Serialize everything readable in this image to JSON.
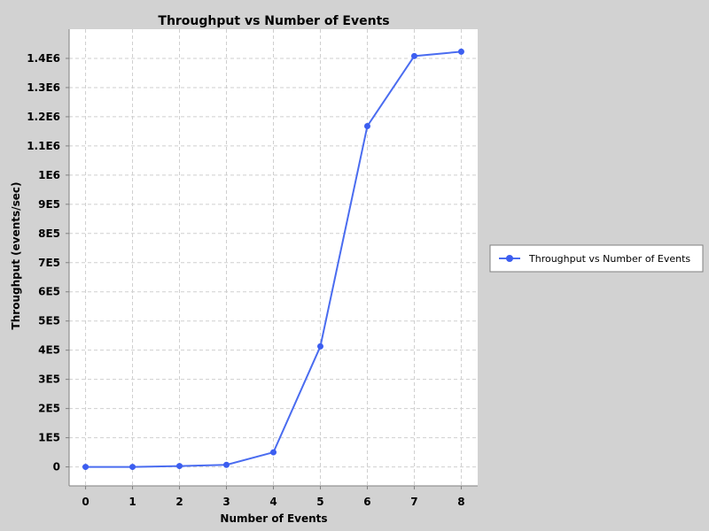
{
  "chart_data": {
    "type": "line",
    "title": "Throughput vs Number of Events",
    "xlabel": "Number of Events",
    "ylabel": "Throughput (events/sec)",
    "x": [
      0,
      1,
      2,
      3,
      4,
      5,
      6,
      7,
      8
    ],
    "x_tick_labels": [
      "0",
      "1",
      "2",
      "3",
      "4",
      "5",
      "6",
      "7",
      "8"
    ],
    "xlim": [
      -0.35,
      8.35
    ],
    "ylim": [
      -65000,
      1500000
    ],
    "y_ticks": [
      0,
      100000,
      200000,
      300000,
      400000,
      500000,
      600000,
      700000,
      800000,
      900000,
      1000000,
      1100000,
      1200000,
      1300000,
      1400000
    ],
    "y_tick_labels": [
      "0",
      "1E5",
      "2E5",
      "3E5",
      "4E5",
      "5E5",
      "6E5",
      "7E5",
      "8E5",
      "9E5",
      "1E6",
      "1.1E6",
      "1.2E6",
      "1.3E6",
      "1.4E6"
    ],
    "series": [
      {
        "name": "Throughput vs Number of Events",
        "color": "#4a6cf0",
        "values": [
          0,
          0,
          3000,
          7000,
          50000,
          413000,
          1168000,
          1408000,
          1423000
        ]
      }
    ],
    "grid": true,
    "legend_position": "right"
  }
}
